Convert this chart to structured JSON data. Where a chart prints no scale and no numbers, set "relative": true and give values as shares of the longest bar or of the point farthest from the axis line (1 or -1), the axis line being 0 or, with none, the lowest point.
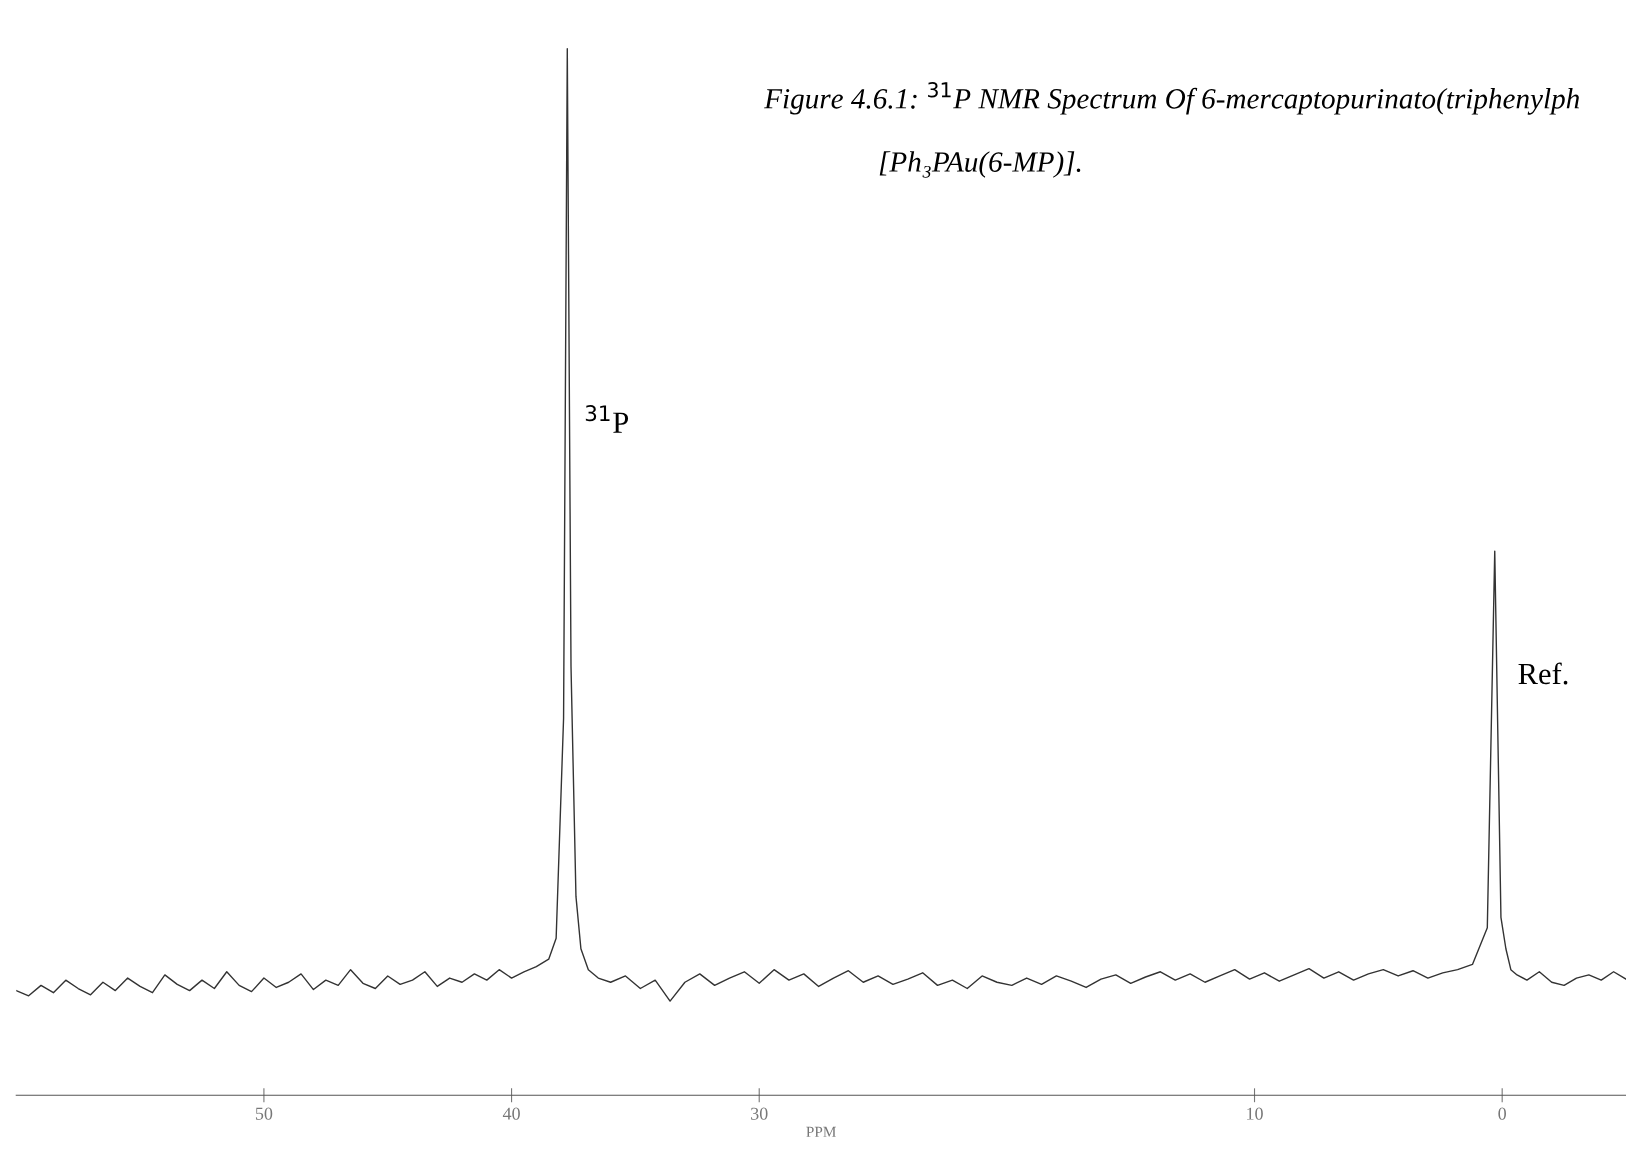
{
  "chart_data": {
    "type": "line",
    "title": "Figure 4.6.1: $^{31}$P NMR Spectrum Of 6-mercaptopurinato(triphenylph",
    "subtitle": "[Ph₃PAu(6-MP)].",
    "xlabel": "PPM",
    "relative": true,
    "x": [
      60,
      59.5,
      59,
      58.5,
      58,
      57.5,
      57,
      56.5,
      56,
      55.5,
      55,
      54.5,
      54,
      53.5,
      53,
      52.5,
      52,
      51.5,
      51,
      50.5,
      50,
      49.5,
      49,
      48.5,
      48,
      47.5,
      47,
      46.5,
      46,
      45.5,
      45,
      44.5,
      44,
      43.5,
      43,
      42.5,
      42,
      41.5,
      41,
      40.5,
      40,
      39.5,
      39,
      38.5,
      38.2,
      37.9,
      37.75,
      37.6,
      37.4,
      37.2,
      36.9,
      36.5,
      36,
      35.4,
      34.8,
      34.2,
      33.6,
      33,
      32.4,
      31.8,
      31.2,
      30.6,
      30,
      29.4,
      28.8,
      28.2,
      27.6,
      27,
      26.4,
      25.8,
      25.2,
      24.6,
      24,
      23.4,
      22.8,
      22.2,
      21.6,
      21,
      20.4,
      19.8,
      19.2,
      18.6,
      18,
      17.4,
      16.8,
      16.2,
      15.6,
      15,
      14.4,
      13.8,
      13.2,
      12.6,
      12,
      11.4,
      10.8,
      10.2,
      9.6,
      9,
      8.4,
      7.8,
      7.2,
      6.6,
      6,
      5.4,
      4.8,
      4.2,
      3.6,
      3,
      2.4,
      1.8,
      1.2,
      0.6,
      0.3,
      0.05,
      -0.15,
      -0.35,
      -0.6,
      -1,
      -1.5,
      -2,
      -2.5,
      -3,
      -3.5,
      -4,
      -4.5,
      -5
    ],
    "series": [
      {
        "color": "#333333",
        "values": [
          0.1,
          0.095,
          0.105,
          0.098,
          0.11,
          0.102,
          0.096,
          0.108,
          0.1,
          0.112,
          0.104,
          0.098,
          0.115,
          0.106,
          0.1,
          0.11,
          0.102,
          0.118,
          0.105,
          0.099,
          0.112,
          0.103,
          0.108,
          0.116,
          0.101,
          0.11,
          0.105,
          0.12,
          0.107,
          0.102,
          0.114,
          0.106,
          0.11,
          0.118,
          0.104,
          0.112,
          0.108,
          0.116,
          0.11,
          0.12,
          0.112,
          0.118,
          0.123,
          0.13,
          0.15,
          0.36,
          1.0,
          0.41,
          0.19,
          0.14,
          0.12,
          0.112,
          0.108,
          0.114,
          0.102,
          0.11,
          0.09,
          0.108,
          0.116,
          0.105,
          0.112,
          0.118,
          0.107,
          0.12,
          0.11,
          0.116,
          0.104,
          0.112,
          0.119,
          0.108,
          0.114,
          0.106,
          0.111,
          0.117,
          0.105,
          0.11,
          0.102,
          0.114,
          0.108,
          0.105,
          0.112,
          0.106,
          0.114,
          0.109,
          0.103,
          0.111,
          0.115,
          0.107,
          0.113,
          0.118,
          0.11,
          0.116,
          0.108,
          0.114,
          0.12,
          0.111,
          0.117,
          0.109,
          0.115,
          0.121,
          0.112,
          0.118,
          0.11,
          0.116,
          0.12,
          0.114,
          0.119,
          0.112,
          0.117,
          0.12,
          0.125,
          0.16,
          0.52,
          0.17,
          0.14,
          0.12,
          0.115,
          0.11,
          0.118,
          0.108,
          0.105,
          0.112,
          0.115,
          0.11,
          0.118,
          0.111
        ]
      }
    ],
    "xlim": [
      60,
      -5
    ],
    "xticks": [
      50,
      40,
      30,
      10,
      0
    ],
    "annotations": [
      {
        "text": "$^{31}$P",
        "x": 37.75,
        "y": 0.64
      },
      {
        "text": "Ref.",
        "x": 0.05,
        "y": 0.4
      }
    ],
    "line_style": "solid",
    "marker": "none",
    "grid": false,
    "legend": false
  }
}
